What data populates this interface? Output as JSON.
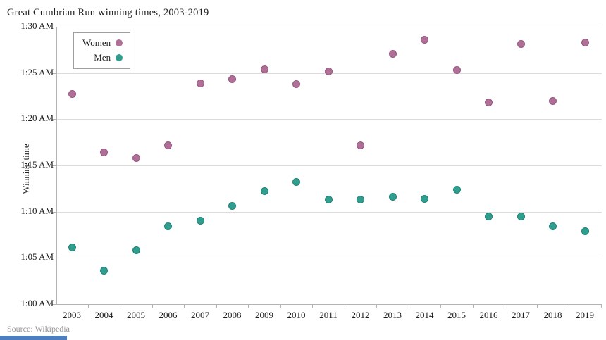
{
  "chart": {
    "title": "Great Cumbrian Run winning times, 2003-2019",
    "ylabel": "Winning time",
    "source": "Source: Wikipedia"
  },
  "chart_data": {
    "type": "scatter",
    "title": "Great Cumbrian Run winning times, 2003-2019",
    "xlabel": "",
    "ylabel": "Winning time",
    "x": [
      2003,
      2004,
      2005,
      2006,
      2007,
      2008,
      2009,
      2010,
      2011,
      2012,
      2013,
      2014,
      2015,
      2016,
      2017,
      2018,
      2019
    ],
    "series": [
      {
        "name": "Women",
        "color": "#b06f96",
        "border_color": "#96577f",
        "values_minutes": [
          82.7,
          76.4,
          75.8,
          77.2,
          83.9,
          84.3,
          85.4,
          83.8,
          85.2,
          77.2,
          87.1,
          88.6,
          85.3,
          81.8,
          88.1,
          82.0,
          88.3
        ]
      },
      {
        "name": "Men",
        "color": "#2f9e8e",
        "border_color": "#1f8375",
        "values_minutes": [
          66.1,
          63.6,
          65.8,
          68.4,
          69.0,
          70.6,
          72.2,
          73.2,
          71.3,
          71.3,
          71.6,
          71.4,
          72.4,
          69.5,
          69.5,
          68.4,
          67.9
        ]
      }
    ],
    "value_unit": "winning time in minutes (82.7 = 1:22.7)",
    "ylim_minutes": [
      60,
      90
    ],
    "y_tick_step_minutes": 5,
    "y_tick_labels": [
      "1:30 AM",
      "1:25 AM",
      "1:20 AM",
      "1:15 AM",
      "1:10 AM",
      "1:05 AM",
      "1:00 AM"
    ],
    "grid": "horizontal",
    "legend_position": "top-left-inside",
    "source": "Source: Wikipedia"
  },
  "misc": {
    "bottom_bar_color": "#4d7ebf",
    "gridline_color": "#dcdcdc",
    "axis_color": "#b3b3b3"
  }
}
